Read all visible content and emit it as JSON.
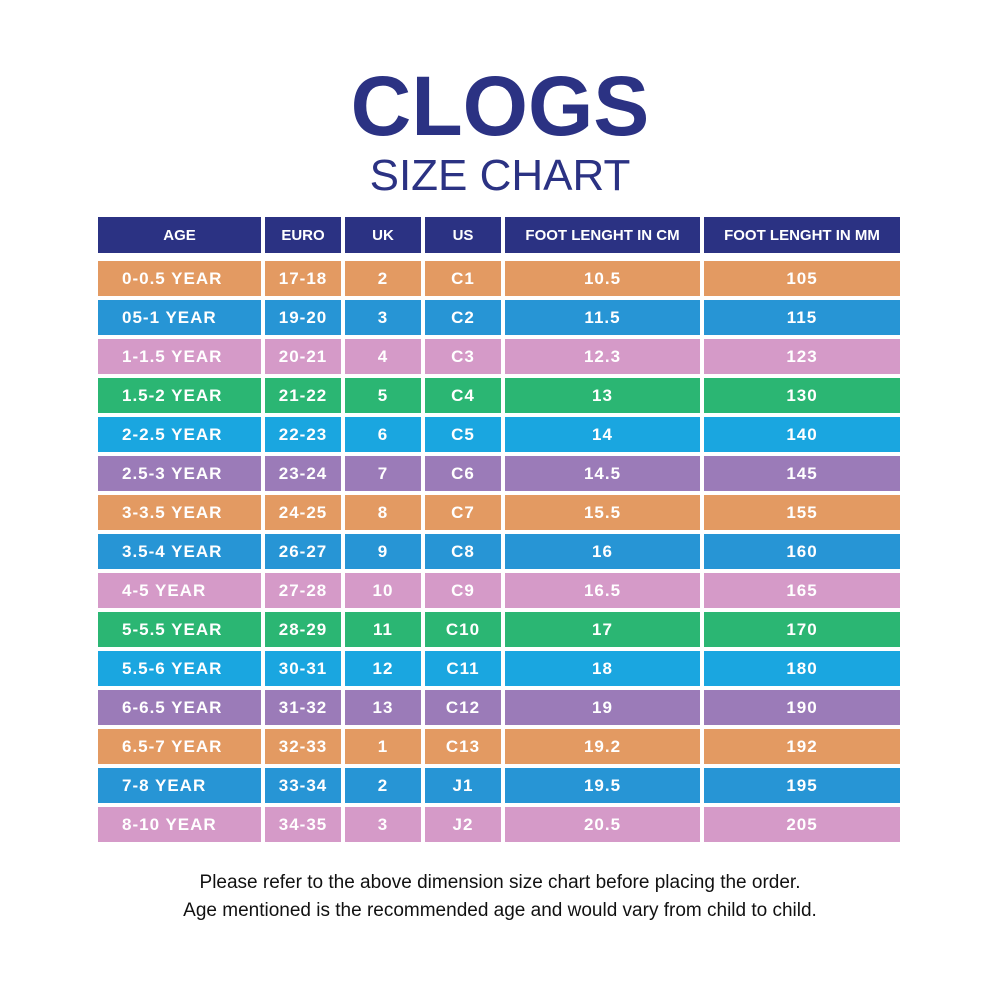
{
  "header": {
    "title": "CLOGS",
    "subtitle": "SIZE CHART"
  },
  "table": {
    "columns": [
      "AGE",
      "EURO",
      "UK",
      "US",
      "FOOT LENGHT IN CM",
      "FOOT LENGHT IN MM"
    ],
    "rows": [
      [
        "0-0.5 YEAR",
        "17-18",
        "2",
        "C1",
        "10.5",
        "105"
      ],
      [
        "05-1 YEAR",
        "19-20",
        "3",
        "C2",
        "11.5",
        "115"
      ],
      [
        "1-1.5 YEAR",
        "20-21",
        "4",
        "C3",
        "12.3",
        "123"
      ],
      [
        "1.5-2 YEAR",
        "21-22",
        "5",
        "C4",
        "13",
        "130"
      ],
      [
        "2-2.5 YEAR",
        "22-23",
        "6",
        "C5",
        "14",
        "140"
      ],
      [
        "2.5-3 YEAR",
        "23-24",
        "7",
        "C6",
        "14.5",
        "145"
      ],
      [
        "3-3.5 YEAR",
        "24-25",
        "8",
        "C7",
        "15.5",
        "155"
      ],
      [
        "3.5-4 YEAR",
        "26-27",
        "9",
        "C8",
        "16",
        "160"
      ],
      [
        "4-5 YEAR",
        "27-28",
        "10",
        "C9",
        "16.5",
        "165"
      ],
      [
        "5-5.5 YEAR",
        "28-29",
        "11",
        "C10",
        "17",
        "170"
      ],
      [
        "5.5-6 YEAR",
        "30-31",
        "12",
        "C11",
        "18",
        "180"
      ],
      [
        "6-6.5 YEAR",
        "31-32",
        "13",
        "C12",
        "19",
        "190"
      ],
      [
        "6.5-7 YEAR",
        "32-33",
        "1",
        "C13",
        "19.2",
        "192"
      ],
      [
        "7-8 YEAR",
        "33-34",
        "2",
        "J1",
        "19.5",
        "195"
      ],
      [
        "8-10 YEAR",
        "34-35",
        "3",
        "J2",
        "20.5",
        "205"
      ]
    ]
  },
  "footer": {
    "lines": [
      "Please refer to the above dimension size chart before placing the order.",
      "Age mentioned is the recommended age and would vary from child to child."
    ]
  }
}
